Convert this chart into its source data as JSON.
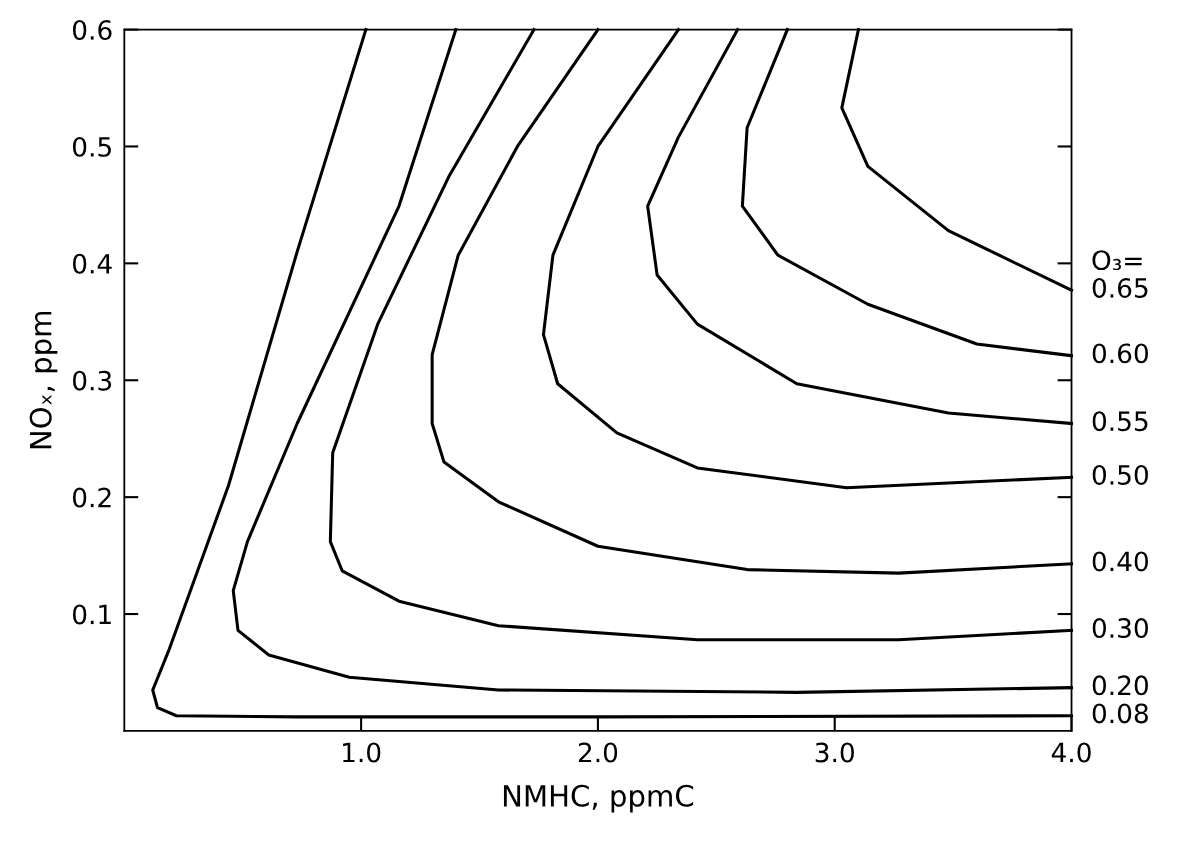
{
  "chart_data": {
    "type": "line",
    "xlabel": "NMHC, ppmC",
    "ylabel": "NOₓ, ppm",
    "xlim": [
      0,
      4
    ],
    "ylim": [
      0,
      0.6
    ],
    "xticks": [
      {
        "value": 1,
        "label": "1.0"
      },
      {
        "value": 2,
        "label": "2.0"
      },
      {
        "value": 3,
        "label": "3.0"
      },
      {
        "value": 4,
        "label": "4.0"
      }
    ],
    "yticks": [
      0.1,
      0.2,
      0.3,
      0.4,
      0.5,
      0.6
    ],
    "grid": false,
    "legend": "right",
    "marker": "none",
    "line_style": "solid",
    "annotations": [
      "O₃="
    ],
    "series": [
      {
        "name": "0.65",
        "color": "#000000",
        "x": [
          3.1,
          3.03,
          3.14,
          3.48,
          4.0
        ],
        "values": [
          0.6,
          0.533,
          0.483,
          0.428,
          0.377
        ]
      },
      {
        "name": "0.60",
        "color": "#000000",
        "x": [
          2.8,
          2.63,
          2.61,
          2.76,
          3.14,
          3.6,
          4.0
        ],
        "values": [
          0.6,
          0.516,
          0.449,
          0.407,
          0.365,
          0.331,
          0.321
        ]
      },
      {
        "name": "0.55",
        "color": "#000000",
        "x": [
          2.59,
          2.34,
          2.21,
          2.25,
          2.42,
          2.84,
          3.48,
          4.0
        ],
        "values": [
          0.6,
          0.508,
          0.449,
          0.39,
          0.348,
          0.297,
          0.272,
          0.263
        ]
      },
      {
        "name": "0.50",
        "color": "#000000",
        "x": [
          2.34,
          2.0,
          1.81,
          1.77,
          1.83,
          2.08,
          2.42,
          3.05,
          4.0
        ],
        "values": [
          0.6,
          0.5,
          0.407,
          0.339,
          0.297,
          0.255,
          0.225,
          0.208,
          0.217
        ]
      },
      {
        "name": "0.40",
        "color": "#000000",
        "x": [
          2.0,
          1.66,
          1.41,
          1.3,
          1.3,
          1.35,
          1.58,
          2.0,
          2.63,
          3.27,
          4.0
        ],
        "values": [
          0.6,
          0.5,
          0.407,
          0.322,
          0.263,
          0.23,
          0.196,
          0.158,
          0.138,
          0.135,
          0.143
        ]
      },
      {
        "name": "0.30",
        "color": "#000000",
        "x": [
          1.73,
          1.37,
          1.07,
          0.88,
          0.87,
          0.92,
          1.16,
          1.58,
          2.42,
          3.27,
          4.0
        ],
        "values": [
          0.6,
          0.474,
          0.348,
          0.238,
          0.162,
          0.137,
          0.111,
          0.09,
          0.078,
          0.078,
          0.086
        ]
      },
      {
        "name": "0.20",
        "color": "#000000",
        "x": [
          1.4,
          1.16,
          0.73,
          0.52,
          0.46,
          0.48,
          0.61,
          0.95,
          1.58,
          2.84,
          4.0
        ],
        "values": [
          0.6,
          0.449,
          0.263,
          0.162,
          0.12,
          0.086,
          0.065,
          0.046,
          0.035,
          0.033,
          0.037
        ]
      },
      {
        "name": "0.08",
        "color": "#000000",
        "x": [
          1.02,
          0.73,
          0.44,
          0.19,
          0.12,
          0.14,
          0.22,
          0.73,
          2.0,
          4.0
        ],
        "values": [
          0.6,
          0.41,
          0.21,
          0.07,
          0.035,
          0.02,
          0.013,
          0.012,
          0.012,
          0.013
        ]
      }
    ]
  }
}
